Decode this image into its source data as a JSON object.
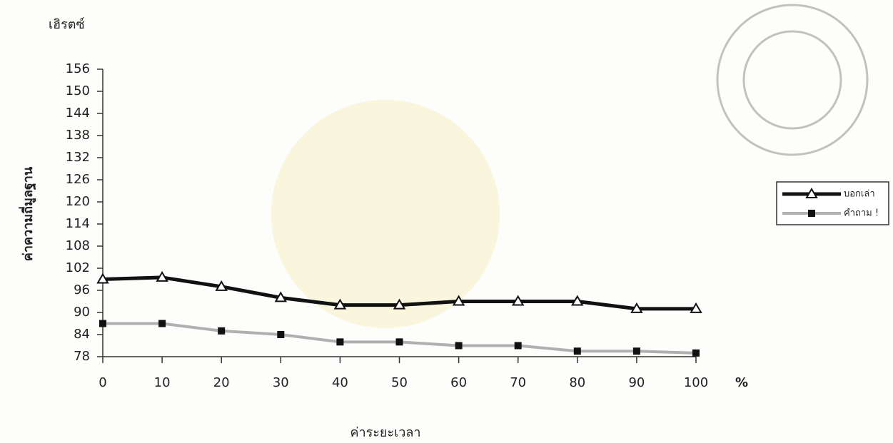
{
  "chart_data": {
    "type": "line",
    "y_unit_label": "เฮิรตซ์",
    "y_label": "ค่าความถี่มูลฐาน",
    "x_label": "ค่าระยะเวลา",
    "x_unit_label": "%",
    "x": [
      0,
      10,
      20,
      30,
      40,
      50,
      60,
      70,
      80,
      90,
      100
    ],
    "xlim": [
      0,
      100
    ],
    "xticks": [
      0,
      10,
      20,
      30,
      40,
      50,
      60,
      70,
      80,
      90,
      100
    ],
    "ylim": [
      78,
      156
    ],
    "yticks": [
      78,
      84,
      90,
      96,
      102,
      108,
      114,
      120,
      126,
      132,
      138,
      144,
      150,
      156
    ],
    "grid": false,
    "legend": "right",
    "series": [
      {
        "name": "บอกเล่า",
        "color": "#111111",
        "marker": "triangle",
        "values": [
          99,
          99.5,
          97,
          94,
          92,
          92,
          93,
          93,
          93,
          91,
          91
        ]
      },
      {
        "name": "คำถาม !",
        "color": "#b0b0b0",
        "marker": "square",
        "values": [
          87,
          87,
          85,
          84,
          82,
          82,
          81,
          81,
          79.5,
          79.5,
          79
        ]
      }
    ]
  }
}
